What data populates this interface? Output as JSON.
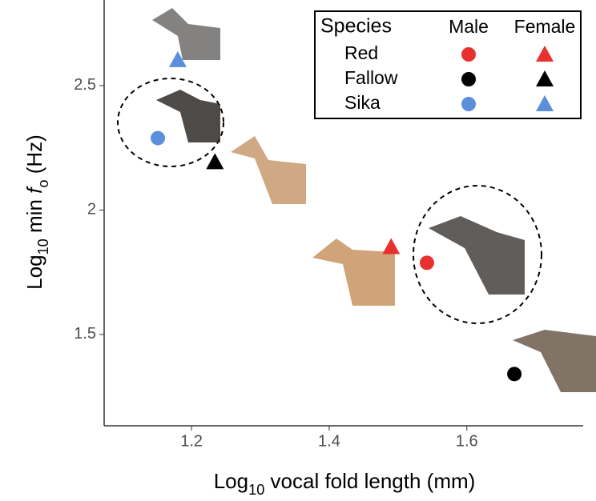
{
  "chart_data": {
    "type": "scatter",
    "x_label_parts": [
      "Log",
      "10",
      " vocal fold length (mm)"
    ],
    "y_label_parts": [
      "Log",
      "10",
      " min ",
      "f",
      "o",
      " (Hz)"
    ],
    "xlim": [
      1.073,
      1.769
    ],
    "xticks": [
      1.2,
      1.4,
      1.6
    ],
    "ylim": [
      1.133,
      2.844
    ],
    "yticks": [
      1.5,
      2.0,
      2.5
    ],
    "legend_title": "Species",
    "sexes": [
      "Male",
      "Female"
    ],
    "markers": [
      "circle",
      "triangle"
    ],
    "series": [
      {
        "name": "Red",
        "color": "#e8312f",
        "x": [
          1.542,
          1.49
        ],
        "y": [
          1.788,
          1.852
        ]
      },
      {
        "name": "Fallow",
        "color": "#000000",
        "x": [
          1.669,
          1.234
        ],
        "y": [
          1.341,
          2.193
        ]
      },
      {
        "name": "Sika",
        "color": "#5b8fdc",
        "x": [
          1.151,
          1.18
        ],
        "y": [
          2.289,
          2.603
        ]
      }
    ]
  }
}
